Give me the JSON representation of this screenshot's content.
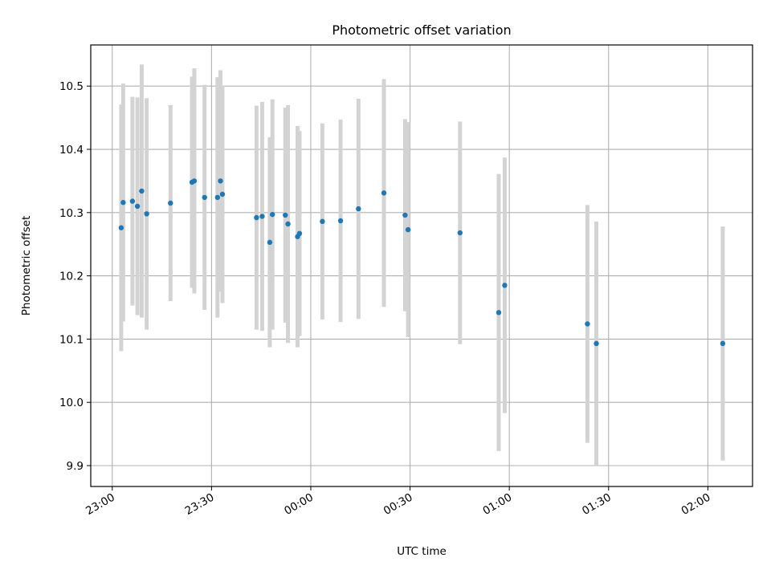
{
  "chart_data": {
    "type": "scatter",
    "title": "Photometric offset variation",
    "xlabel": "UTC time",
    "ylabel": "Photometric offset",
    "x_tick_labels": [
      "23:00",
      "23:30",
      "00:00",
      "00:30",
      "01:00",
      "01:30",
      "02:00"
    ],
    "x_tick_minutes": [
      0,
      30,
      60,
      90,
      120,
      150,
      180
    ],
    "xlim_minutes": [
      -6.5,
      193.5
    ],
    "y_ticks": [
      "9.9",
      "10.0",
      "10.1",
      "10.2",
      "10.3",
      "10.4",
      "10.5"
    ],
    "ylim": [
      9.867,
      10.565
    ],
    "grid": true,
    "colors": {
      "point": "#1f77b4",
      "errorbar": "#d3d3d3",
      "grid": "#b0b0b0"
    },
    "points": [
      {
        "t": "23:02.7",
        "y": 10.276,
        "err": 0.195
      },
      {
        "t": "23:03.3",
        "y": 10.316,
        "err": 0.188
      },
      {
        "t": "23:06.1",
        "y": 10.318,
        "err": 0.165
      },
      {
        "t": "23:07.6",
        "y": 10.31,
        "err": 0.172
      },
      {
        "t": "23:08.9",
        "y": 10.334,
        "err": 0.2
      },
      {
        "t": "23:10.4",
        "y": 10.298,
        "err": 0.183
      },
      {
        "t": "23:17.6",
        "y": 10.315,
        "err": 0.155
      },
      {
        "t": "23:24.1",
        "y": 10.348,
        "err": 0.167
      },
      {
        "t": "23:24.8",
        "y": 10.35,
        "err": 0.178
      },
      {
        "t": "23:27.9",
        "y": 10.324,
        "err": 0.178
      },
      {
        "t": "23:31.8",
        "y": 10.324,
        "err": 0.19
      },
      {
        "t": "23:32.7",
        "y": 10.35,
        "err": 0.175
      },
      {
        "t": "23:33.3",
        "y": 10.329,
        "err": 0.172
      },
      {
        "t": "23:43.6",
        "y": 10.292,
        "err": 0.177
      },
      {
        "t": "23:45.3",
        "y": 10.294,
        "err": 0.181
      },
      {
        "t": "23:47.6",
        "y": 10.253,
        "err": 0.166
      },
      {
        "t": "23:48.4",
        "y": 10.297,
        "err": 0.182
      },
      {
        "t": "23:52.3",
        "y": 10.296,
        "err": 0.17
      },
      {
        "t": "23:53.1",
        "y": 10.282,
        "err": 0.188
      },
      {
        "t": "23:56.0",
        "y": 10.262,
        "err": 0.175
      },
      {
        "t": "23:56.6",
        "y": 10.267,
        "err": 0.162
      },
      {
        "t": "00:03.5",
        "y": 10.286,
        "err": 0.155
      },
      {
        "t": "00:09.0",
        "y": 10.287,
        "err": 0.16
      },
      {
        "t": "00:14.4",
        "y": 10.306,
        "err": 0.174
      },
      {
        "t": "00:22.1",
        "y": 10.331,
        "err": 0.18
      },
      {
        "t": "00:28.5",
        "y": 10.296,
        "err": 0.152
      },
      {
        "t": "00:29.4",
        "y": 10.273,
        "err": 0.17
      },
      {
        "t": "00:45.1",
        "y": 10.268,
        "err": 0.176
      },
      {
        "t": "00:56.8",
        "y": 10.142,
        "err": 0.219
      },
      {
        "t": "00:58.6",
        "y": 10.185,
        "err": 0.202
      },
      {
        "t": "01:23.6",
        "y": 10.124,
        "err": 0.188
      },
      {
        "t": "01:26.3",
        "y": 10.093,
        "err": 0.193
      },
      {
        "t": "02:04.5",
        "y": 10.093,
        "err": 0.185
      }
    ]
  }
}
